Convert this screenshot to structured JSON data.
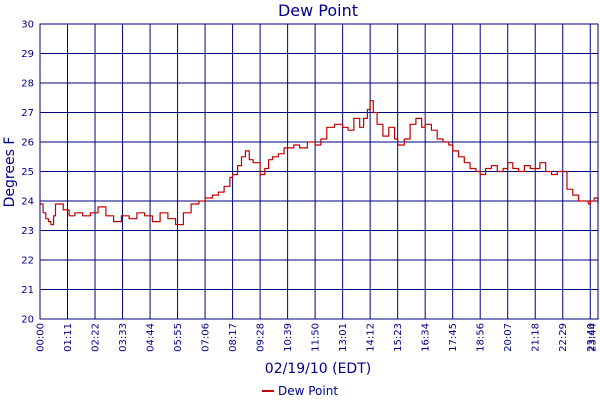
{
  "chart_data": {
    "type": "line",
    "title": "Dew Point",
    "xlabel": "02/19/10 (EDT)",
    "ylabel": "Degrees F",
    "ylim": [
      20,
      30
    ],
    "yticks": [
      "20",
      "21",
      "22",
      "23",
      "24",
      "25",
      "26",
      "27",
      "28",
      "29",
      "30"
    ],
    "xlim_minutes": [
      0,
      1440
    ],
    "xticks": [
      "00:00",
      "01:11",
      "02:22",
      "03:33",
      "04:44",
      "05:55",
      "07:06",
      "08:17",
      "09:28",
      "10:39",
      "11:50",
      "13:01",
      "14:12",
      "15:23",
      "16:34",
      "17:45",
      "18:56",
      "20:07",
      "21:18",
      "22:29",
      "23:40",
      "23:44"
    ],
    "xticks_minutes": [
      0,
      71,
      142,
      213,
      284,
      355,
      426,
      497,
      568,
      639,
      710,
      781,
      852,
      923,
      994,
      1065,
      1136,
      1207,
      1278,
      1349,
      1420,
      1424
    ],
    "grid": true,
    "legend_position": "bottom-center",
    "series": [
      {
        "name": "Dew Point",
        "color": "#C00000",
        "x_minutes": [
          0,
          8,
          15,
          22,
          28,
          35,
          40,
          50,
          60,
          75,
          90,
          110,
          130,
          150,
          170,
          190,
          210,
          230,
          250,
          270,
          290,
          310,
          330,
          350,
          370,
          390,
          410,
          426,
          445,
          460,
          475,
          490,
          497,
          510,
          520,
          530,
          540,
          550,
          568,
          580,
          590,
          600,
          615,
          630,
          639,
          655,
          670,
          690,
          710,
          725,
          740,
          760,
          781,
          795,
          810,
          825,
          835,
          845,
          852,
          860,
          870,
          885,
          900,
          915,
          923,
          940,
          955,
          970,
          985,
          994,
          1010,
          1025,
          1040,
          1055,
          1065,
          1080,
          1095,
          1110,
          1125,
          1136,
          1150,
          1165,
          1180,
          1195,
          1207,
          1220,
          1235,
          1250,
          1265,
          1278,
          1290,
          1305,
          1320,
          1335,
          1349,
          1360,
          1375,
          1390,
          1405,
          1415,
          1420,
          1430,
          1440
        ],
        "values": [
          23.9,
          23.6,
          23.4,
          23.3,
          23.2,
          23.5,
          23.9,
          23.9,
          23.7,
          23.5,
          23.6,
          23.5,
          23.6,
          23.8,
          23.5,
          23.3,
          23.5,
          23.4,
          23.6,
          23.5,
          23.3,
          23.6,
          23.4,
          23.2,
          23.6,
          23.9,
          24.0,
          24.1,
          24.2,
          24.3,
          24.5,
          24.8,
          24.9,
          25.2,
          25.5,
          25.7,
          25.4,
          25.3,
          24.9,
          25.1,
          25.4,
          25.5,
          25.6,
          25.8,
          25.8,
          25.9,
          25.8,
          26.0,
          25.9,
          26.1,
          26.5,
          26.6,
          26.5,
          26.4,
          26.8,
          26.5,
          26.8,
          27.1,
          27.4,
          27.0,
          26.6,
          26.2,
          26.5,
          26.1,
          25.9,
          26.1,
          26.6,
          26.8,
          26.5,
          26.6,
          26.4,
          26.1,
          26.0,
          25.9,
          25.7,
          25.5,
          25.3,
          25.1,
          25.0,
          24.9,
          25.1,
          25.2,
          25.0,
          25.1,
          25.3,
          25.1,
          25.0,
          25.2,
          25.1,
          25.1,
          25.3,
          25.0,
          24.9,
          25.0,
          25.0,
          24.4,
          24.2,
          24.0,
          24.0,
          23.9,
          24.0,
          24.1,
          23.9
        ]
      }
    ]
  }
}
